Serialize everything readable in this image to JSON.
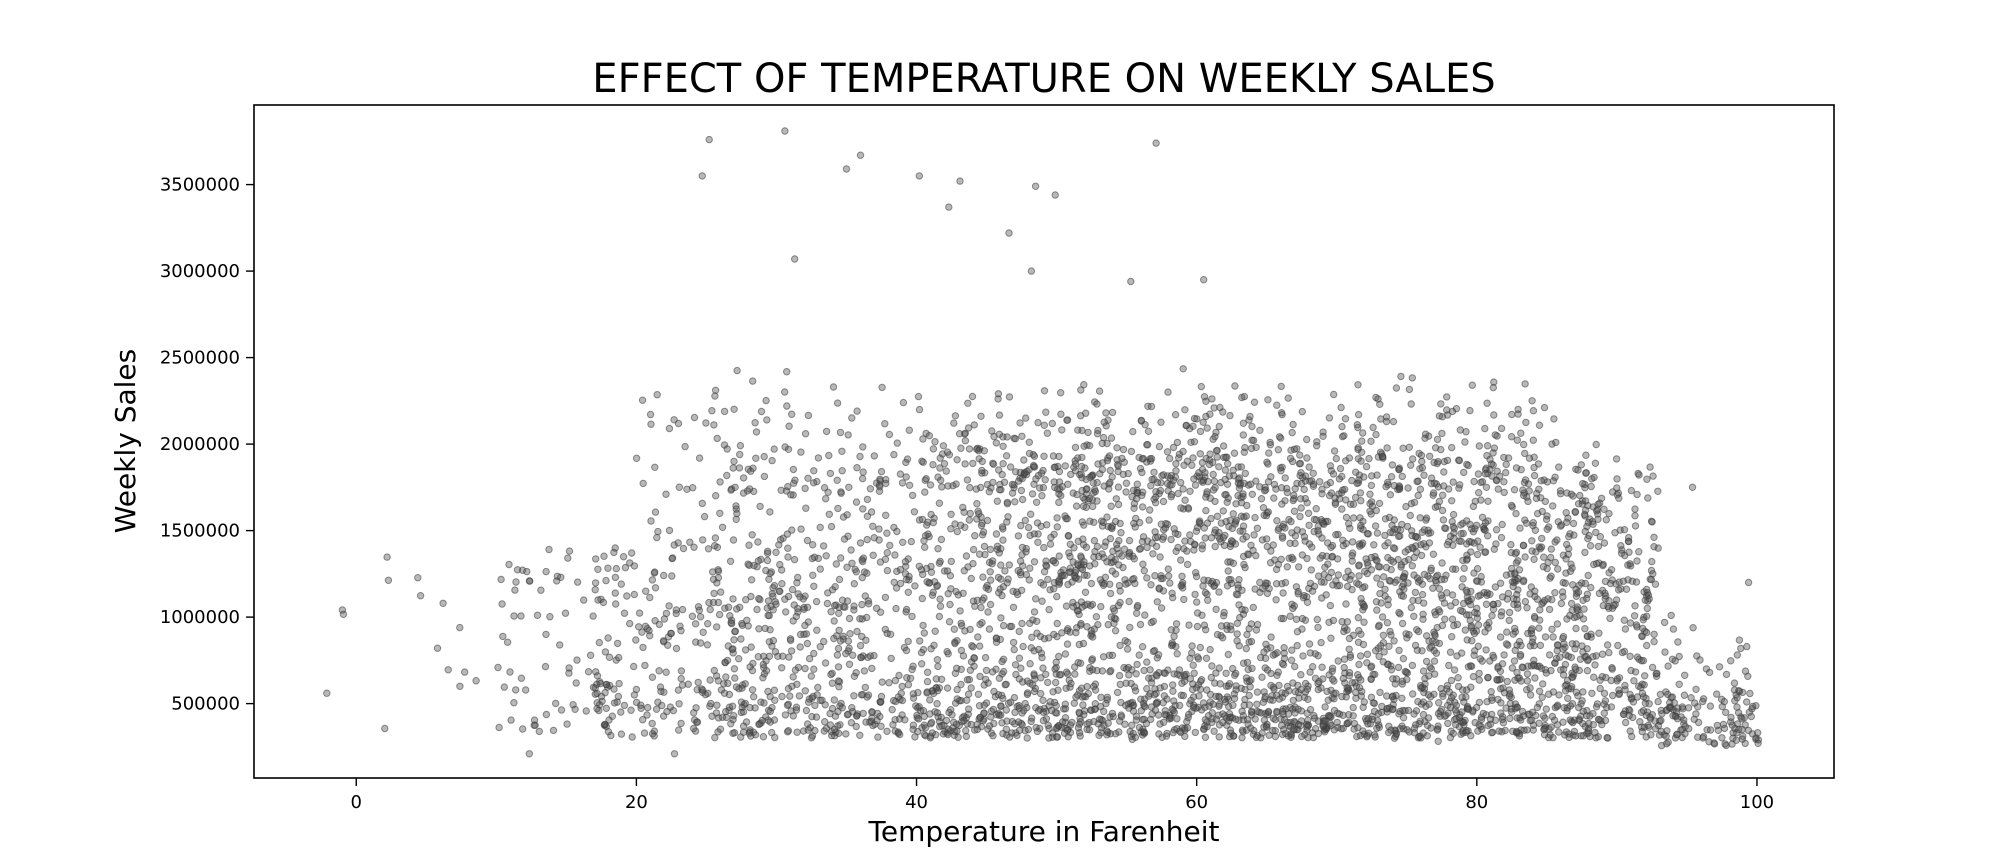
{
  "chart_data": {
    "type": "scatter",
    "title": "EFFECT OF TEMPERATURE ON WEEKLY SALES",
    "xlabel": "Temperature in Farenheit",
    "ylabel": "Weekly Sales",
    "xlim": [
      -7.3,
      105.5
    ],
    "ylim": [
      70000,
      3960000
    ],
    "xticks": [
      0,
      20,
      40,
      60,
      80,
      100
    ],
    "xtick_labels": [
      "0",
      "20",
      "40",
      "60",
      "80",
      "100"
    ],
    "yticks": [
      500000,
      1000000,
      1500000,
      2000000,
      2500000,
      3000000,
      3500000
    ],
    "ytick_labels": [
      "500000",
      "1000000",
      "1500000",
      "2000000",
      "2500000",
      "3000000",
      "3500000"
    ],
    "grid": false,
    "legend": "none",
    "marker_color": "#4d4d4d",
    "marker_alpha": 0.4,
    "point_count_shown": 6435,
    "density_summary": {
      "temperature_bins": [
        [
          -2.1,
          10
        ],
        [
          10,
          20
        ],
        [
          20,
          30
        ],
        [
          30,
          40
        ],
        [
          40,
          50
        ],
        [
          50,
          60
        ],
        [
          60,
          70
        ],
        [
          70,
          80
        ],
        [
          80,
          90
        ],
        [
          90,
          100.1
        ]
      ],
      "approx_points_per_bin": [
        8,
        95,
        380,
        560,
        900,
        1050,
        1150,
        1200,
        820,
        272
      ],
      "typical_sales_range": [
        209986,
        2300000
      ]
    },
    "highlighted_points": [
      {
        "x": -2.1,
        "y": 560000
      },
      {
        "x": 5.8,
        "y": 820000
      },
      {
        "x": 6.2,
        "y": 1080000
      },
      {
        "x": 7.4,
        "y": 600000
      },
      {
        "x": 24.7,
        "y": 3550000
      },
      {
        "x": 25.2,
        "y": 3760000
      },
      {
        "x": 30.6,
        "y": 3810000
      },
      {
        "x": 31.3,
        "y": 3070000
      },
      {
        "x": 35.0,
        "y": 3590000
      },
      {
        "x": 36.0,
        "y": 3670000
      },
      {
        "x": 40.2,
        "y": 3550000
      },
      {
        "x": 42.3,
        "y": 3370000
      },
      {
        "x": 43.1,
        "y": 3520000
      },
      {
        "x": 46.6,
        "y": 3220000
      },
      {
        "x": 48.2,
        "y": 3000000
      },
      {
        "x": 48.5,
        "y": 3490000
      },
      {
        "x": 49.9,
        "y": 3440000
      },
      {
        "x": 55.3,
        "y": 2940000
      },
      {
        "x": 57.1,
        "y": 3740000
      },
      {
        "x": 60.5,
        "y": 2950000
      },
      {
        "x": 95.4,
        "y": 1750000
      },
      {
        "x": 99.4,
        "y": 1200000
      },
      {
        "x": 100.1,
        "y": 290000
      }
    ]
  }
}
